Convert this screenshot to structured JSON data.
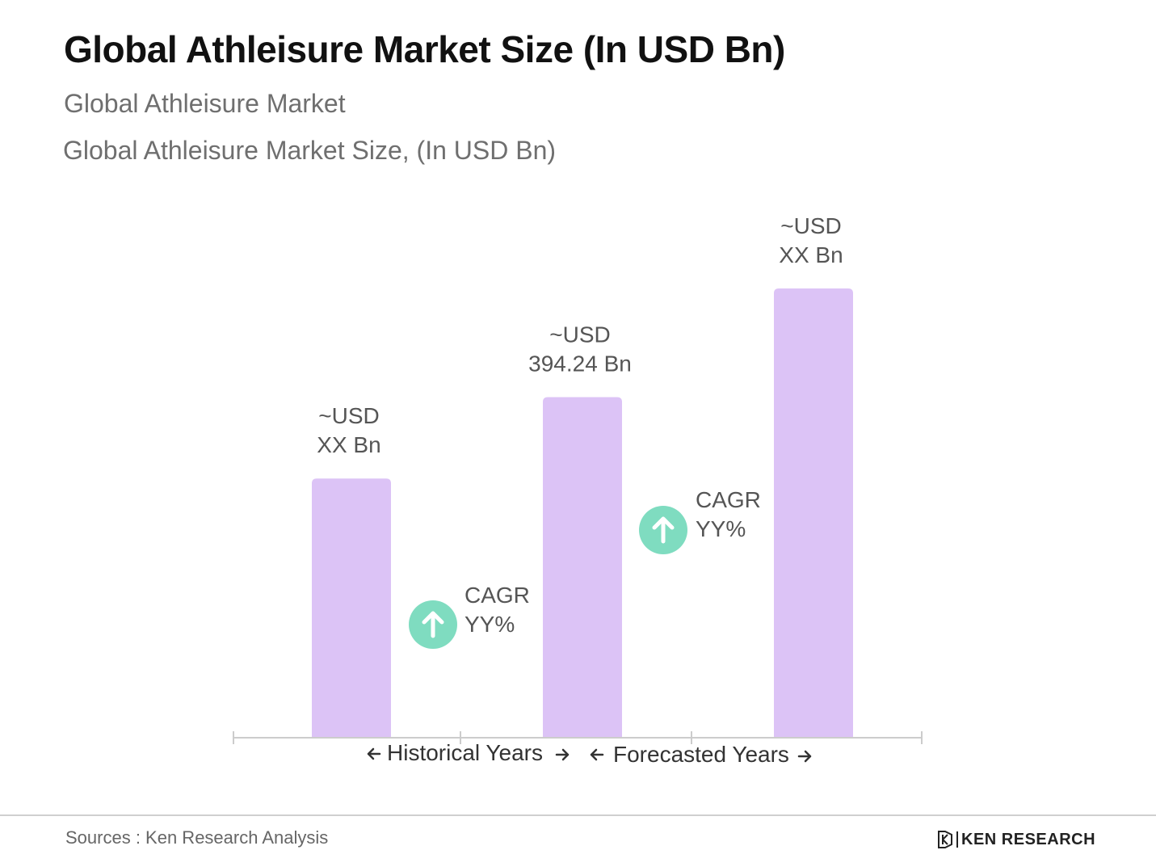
{
  "header": {
    "title": "Global Athleisure Market Size (In USD Bn)",
    "subtitle_1": "Global Athleisure Market",
    "subtitle_2": "Global Athleisure Market Size, (In USD Bn)"
  },
  "chart_data": {
    "type": "bar",
    "values": [
      300,
      394.24,
      520
    ],
    "ylim": [
      0,
      620
    ],
    "bar_labels": [
      [
        "~USD",
        "XX Bn"
      ],
      [
        "~USD",
        "394.24 Bn"
      ],
      [
        "~USD",
        "XX Bn"
      ]
    ],
    "cagr_labels": [
      [
        "CAGR",
        "YY%"
      ],
      [
        "CAGR",
        "YY%"
      ]
    ],
    "period_labels": {
      "historical": "Historical Years",
      "forecast": "Forecasted Years"
    },
    "grid": false,
    "colors": {
      "bar": "#dcc3f6",
      "badge": "#7fdcc0",
      "axis": "#cccccc",
      "label": "#555555"
    },
    "icons": [
      "arrow-up-icon",
      "arrow-left-icon",
      "arrow-right-icon"
    ]
  },
  "footer": {
    "sources": "Sources : Ken Research Analysis",
    "brand": "KEN RESEARCH"
  }
}
